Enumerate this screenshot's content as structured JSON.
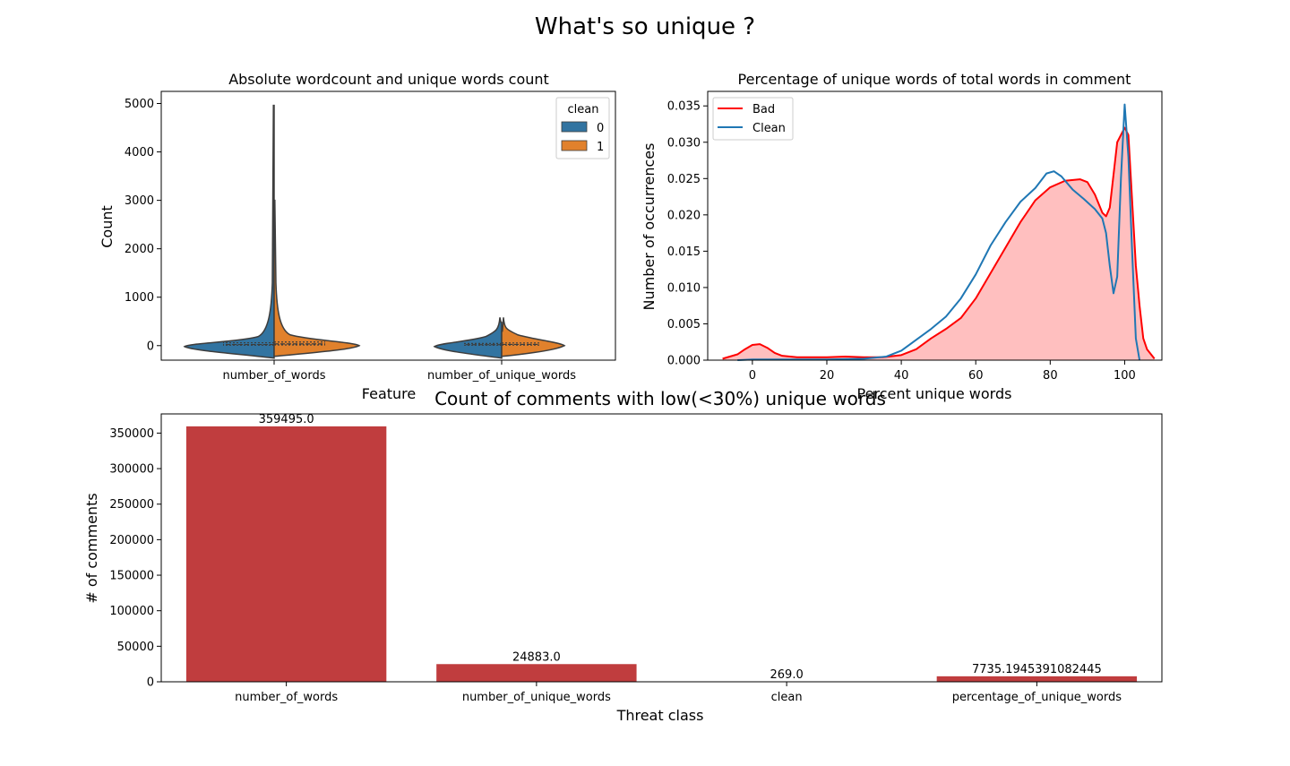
{
  "figure": {
    "suptitle": "What's so unique ?"
  },
  "chart_data": [
    {
      "type": "violin",
      "title": "Absolute wordcount and unique words count",
      "xlabel": "Feature",
      "ylabel": "Count",
      "categories": [
        "number_of_words",
        "number_of_unique_words"
      ],
      "ylim": [
        -300,
        5250
      ],
      "yticks": [
        0,
        1000,
        2000,
        3000,
        4000,
        5000
      ],
      "legend": {
        "title": "clean",
        "placement": "upper right",
        "entries": [
          "0",
          "1"
        ]
      },
      "series": [
        {
          "name": "0",
          "color": "#3274a1",
          "max": [
            4960,
            480
          ],
          "median": [
            23,
            20
          ],
          "q1": [
            10,
            9
          ],
          "q3": [
            60,
            45
          ]
        },
        {
          "name": "1",
          "color": "#e1812c",
          "max": [
            3000,
            300
          ],
          "median": [
            35,
            25
          ],
          "q1": [
            15,
            12
          ],
          "q3": [
            75,
            55
          ]
        }
      ],
      "grid": false
    },
    {
      "type": "area",
      "title": "Percentage of unique words of total words in comment",
      "xlabel": "Percent unique words",
      "ylabel": "Number of occurrences",
      "xlim": [
        -12,
        110
      ],
      "ylim": [
        0,
        0.037
      ],
      "xticks": [
        0,
        20,
        40,
        60,
        80,
        100
      ],
      "yticks": [
        "0.000",
        "0.005",
        "0.010",
        "0.015",
        "0.020",
        "0.025",
        "0.030",
        "0.035"
      ],
      "legend": {
        "placement": "upper left"
      },
      "series": [
        {
          "name": "Bad",
          "color": "#ff0000",
          "fill": "#ffbfbf",
          "points": [
            [
              -8,
              0.0002
            ],
            [
              -4,
              0.0008
            ],
            [
              -2,
              0.0015
            ],
            [
              0,
              0.0021
            ],
            [
              2,
              0.0022
            ],
            [
              4,
              0.0017
            ],
            [
              6,
              0.001
            ],
            [
              8,
              0.0006
            ],
            [
              12,
              0.0004
            ],
            [
              20,
              0.0004
            ],
            [
              25,
              0.0005
            ],
            [
              30,
              0.0004
            ],
            [
              35,
              0.0004
            ],
            [
              40,
              0.0007
            ],
            [
              44,
              0.0015
            ],
            [
              48,
              0.003
            ],
            [
              52,
              0.0043
            ],
            [
              56,
              0.0058
            ],
            [
              60,
              0.0085
            ],
            [
              64,
              0.012
            ],
            [
              68,
              0.0155
            ],
            [
              72,
              0.019
            ],
            [
              76,
              0.022
            ],
            [
              80,
              0.0238
            ],
            [
              84,
              0.0247
            ],
            [
              88,
              0.0249
            ],
            [
              90,
              0.0245
            ],
            [
              92,
              0.0228
            ],
            [
              94,
              0.0203
            ],
            [
              95,
              0.0198
            ],
            [
              96,
              0.021
            ],
            [
              98,
              0.03
            ],
            [
              100,
              0.032
            ],
            [
              101,
              0.031
            ],
            [
              102,
              0.022
            ],
            [
              103,
              0.013
            ],
            [
              104,
              0.0075
            ],
            [
              105,
              0.003
            ],
            [
              106,
              0.0015
            ],
            [
              108,
              0.0002
            ]
          ]
        },
        {
          "name": "Clean",
          "color": "#1f77b4",
          "points": [
            [
              -4,
              0.0
            ],
            [
              0,
              0.0001
            ],
            [
              10,
              0.0001
            ],
            [
              20,
              0.0001
            ],
            [
              30,
              0.0002
            ],
            [
              36,
              0.0005
            ],
            [
              40,
              0.0013
            ],
            [
              44,
              0.0028
            ],
            [
              48,
              0.0043
            ],
            [
              52,
              0.006
            ],
            [
              56,
              0.0085
            ],
            [
              60,
              0.0118
            ],
            [
              64,
              0.0158
            ],
            [
              68,
              0.019
            ],
            [
              72,
              0.0218
            ],
            [
              76,
              0.0237
            ],
            [
              79,
              0.0257
            ],
            [
              81,
              0.026
            ],
            [
              83,
              0.0253
            ],
            [
              86,
              0.0235
            ],
            [
              89,
              0.0222
            ],
            [
              92,
              0.0208
            ],
            [
              94,
              0.0195
            ],
            [
              95,
              0.0175
            ],
            [
              96,
              0.013
            ],
            [
              97,
              0.0092
            ],
            [
              98,
              0.0115
            ],
            [
              99,
              0.025
            ],
            [
              100,
              0.0352
            ],
            [
              101,
              0.028
            ],
            [
              102,
              0.015
            ],
            [
              103,
              0.003
            ],
            [
              104,
              0.0
            ]
          ]
        }
      ],
      "grid": false
    },
    {
      "type": "bar",
      "title": "Count of comments with low(<30%) unique words",
      "xlabel": "Threat class",
      "ylabel": "# of comments",
      "categories": [
        "number_of_words",
        "number_of_unique_words",
        "clean",
        "percentage_of_unique_words"
      ],
      "values": [
        359495.0,
        24883.0,
        269.0,
        7735.1945391082445
      ],
      "data_labels": [
        "359495.0",
        "24883.0",
        "269.0",
        "7735.1945391082445"
      ],
      "ylim": [
        0,
        377000
      ],
      "yticks": [
        0,
        50000,
        100000,
        150000,
        200000,
        250000,
        300000,
        350000
      ],
      "color": "#c03d3e",
      "grid": false
    }
  ]
}
